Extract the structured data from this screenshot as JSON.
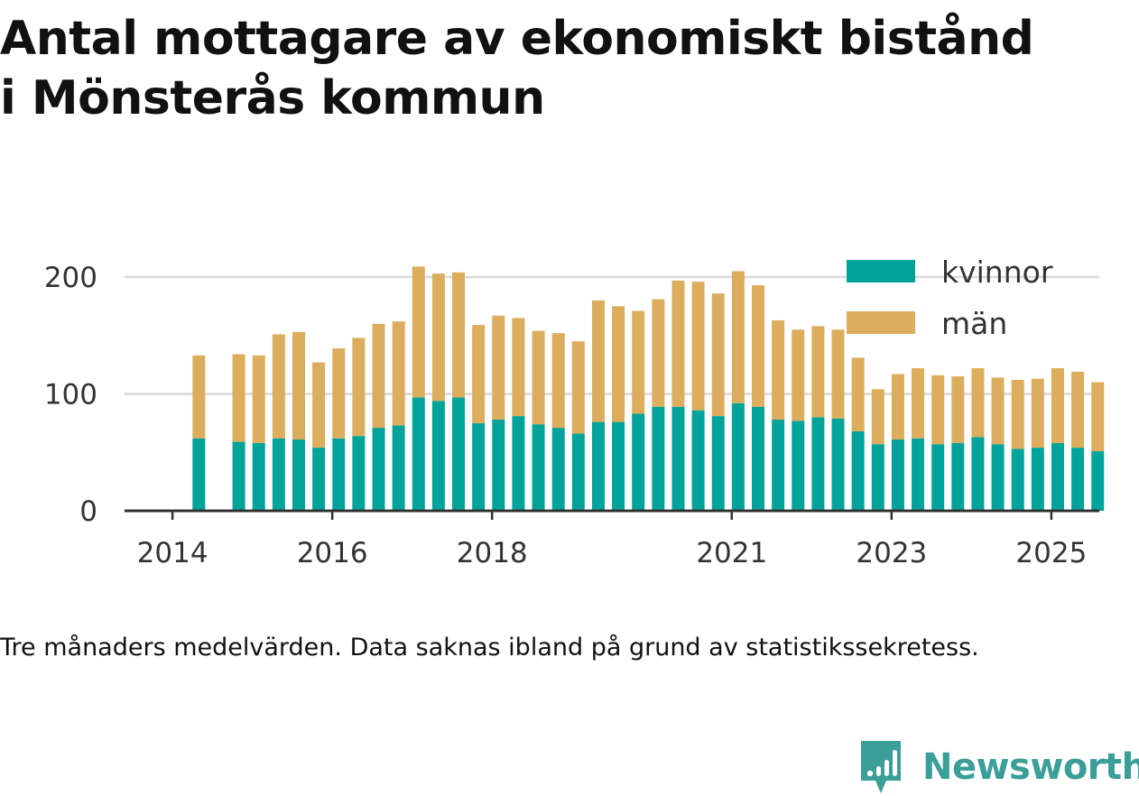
{
  "title_line1": "Antal mottagare av ekonomiskt bistånd",
  "title_line2": "i Mönsterås kommun",
  "caption": "Tre månaders medelvärden. Data saknas ibland på grund av statistikssekretess.",
  "brand": {
    "name": "Newsworthy",
    "logo_icon": "newsworthy-logo-icon",
    "color": "#3a9e99"
  },
  "colors": {
    "kvinnor": "#00a39a",
    "man": "#dcad5c",
    "grid": "#d9d9d9",
    "axis": "#333333",
    "text": "#333333"
  },
  "chart_data": {
    "type": "bar",
    "stacked": true,
    "title": "Antal mottagare av ekonomiskt bistånd i Mönsterås kommun",
    "xlabel": "",
    "ylabel": "",
    "ylim": [
      0,
      215
    ],
    "yticks": [
      0,
      100,
      200
    ],
    "x_range": [
      2013.4,
      2025.6
    ],
    "xticks": [
      2014,
      2016,
      2018,
      2021,
      2023,
      2025
    ],
    "grid": true,
    "legend_position": "top-right",
    "x": [
      2014.33,
      2014.83,
      2015.08,
      2015.33,
      2015.58,
      2015.83,
      2016.08,
      2016.33,
      2016.58,
      2016.83,
      2017.08,
      2017.33,
      2017.58,
      2017.83,
      2018.08,
      2018.33,
      2018.58,
      2018.83,
      2019.08,
      2019.33,
      2019.58,
      2019.83,
      2020.08,
      2020.33,
      2020.58,
      2020.83,
      2021.08,
      2021.33,
      2021.58,
      2021.83,
      2022.08,
      2022.33,
      2022.58,
      2022.83,
      2023.08,
      2023.33,
      2023.58,
      2023.83,
      2024.08,
      2024.33,
      2024.58,
      2024.83,
      2025.08,
      2025.33,
      2025.58
    ],
    "series": [
      {
        "name": "kvinnor",
        "values": [
          62,
          59,
          58,
          62,
          61,
          54,
          62,
          64,
          71,
          73,
          97,
          94,
          97,
          75,
          78,
          81,
          74,
          71,
          66,
          76,
          76,
          83,
          89,
          89,
          86,
          81,
          92,
          89,
          78,
          77,
          80,
          79,
          68,
          57,
          61,
          62,
          57,
          58,
          63,
          57,
          53,
          54,
          58,
          54,
          51
        ]
      },
      {
        "name": "män",
        "values": [
          71,
          75,
          75,
          89,
          92,
          73,
          77,
          84,
          89,
          89,
          112,
          109,
          107,
          84,
          89,
          84,
          80,
          81,
          79,
          104,
          99,
          88,
          92,
          108,
          110,
          105,
          113,
          104,
          85,
          78,
          78,
          76,
          63,
          47,
          56,
          60,
          59,
          57,
          59,
          57,
          59,
          59,
          64,
          65,
          59
        ]
      }
    ]
  }
}
